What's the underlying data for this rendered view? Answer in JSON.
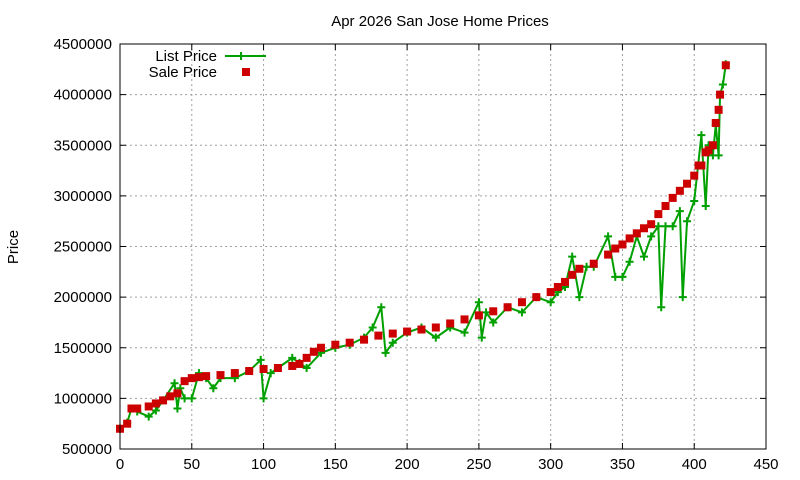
{
  "chart_data": {
    "type": "line",
    "title": "Apr 2026 San Jose Home Prices",
    "xlabel": "",
    "ylabel": "Price",
    "xlim": [
      0,
      450
    ],
    "ylim": [
      500000,
      4500000
    ],
    "xticks": [
      0,
      50,
      100,
      150,
      200,
      250,
      300,
      350,
      400,
      450
    ],
    "yticks": [
      500000,
      1000000,
      1500000,
      2000000,
      2500000,
      3000000,
      3500000,
      4000000,
      4500000
    ],
    "grid": true,
    "legend_position": "top-left",
    "colors": {
      "list": "#00a000",
      "sale": "#cc0000"
    },
    "series": [
      {
        "name": "List Price",
        "style": "linespoints-plus",
        "x": [
          0,
          5,
          8,
          12,
          20,
          25,
          30,
          38,
          40,
          42,
          45,
          50,
          55,
          60,
          65,
          70,
          80,
          90,
          98,
          100,
          105,
          110,
          120,
          125,
          130,
          140,
          150,
          160,
          170,
          176,
          182,
          185,
          190,
          200,
          210,
          220,
          230,
          240,
          250,
          252,
          255,
          260,
          270,
          280,
          290,
          300,
          305,
          310,
          315,
          320,
          325,
          330,
          340,
          345,
          350,
          355,
          360,
          365,
          370,
          375,
          377,
          380,
          385,
          390,
          392,
          395,
          400,
          405,
          408,
          410,
          413,
          415,
          417,
          418,
          420,
          422
        ],
        "y": [
          700000,
          760000,
          900000,
          870000,
          820000,
          880000,
          980000,
          1150000,
          900000,
          1100000,
          1000000,
          1000000,
          1250000,
          1200000,
          1100000,
          1200000,
          1200000,
          1270000,
          1380000,
          1000000,
          1250000,
          1300000,
          1400000,
          1350000,
          1300000,
          1450000,
          1500000,
          1530000,
          1600000,
          1700000,
          1900000,
          1450000,
          1550000,
          1650000,
          1700000,
          1600000,
          1700000,
          1650000,
          1950000,
          1600000,
          1850000,
          1750000,
          1900000,
          1850000,
          2000000,
          1950000,
          2050000,
          2100000,
          2400000,
          2000000,
          2300000,
          2300000,
          2600000,
          2200000,
          2200000,
          2350000,
          2600000,
          2400000,
          2600000,
          2700000,
          1900000,
          2700000,
          2700000,
          2850000,
          2000000,
          2750000,
          2950000,
          3600000,
          2900000,
          3500000,
          3400000,
          3700000,
          3400000,
          4000000,
          4100000,
          4300000
        ]
      },
      {
        "name": "Sale Price",
        "style": "points-square",
        "x": [
          0,
          5,
          8,
          12,
          20,
          25,
          30,
          35,
          40,
          45,
          50,
          55,
          60,
          70,
          80,
          90,
          100,
          110,
          120,
          125,
          130,
          135,
          140,
          150,
          160,
          170,
          180,
          190,
          200,
          210,
          220,
          230,
          240,
          250,
          260,
          270,
          280,
          290,
          300,
          305,
          310,
          315,
          320,
          330,
          340,
          345,
          350,
          355,
          360,
          365,
          370,
          375,
          380,
          385,
          390,
          395,
          400,
          403,
          405,
          408,
          410,
          413,
          415,
          417,
          418,
          422
        ],
        "y": [
          700000,
          750000,
          900000,
          900000,
          920000,
          950000,
          980000,
          1020000,
          1050000,
          1170000,
          1200000,
          1210000,
          1220000,
          1230000,
          1250000,
          1270000,
          1290000,
          1300000,
          1320000,
          1340000,
          1400000,
          1460000,
          1500000,
          1530000,
          1550000,
          1580000,
          1620000,
          1640000,
          1660000,
          1680000,
          1700000,
          1740000,
          1780000,
          1820000,
          1860000,
          1900000,
          1950000,
          2000000,
          2050000,
          2100000,
          2150000,
          2220000,
          2280000,
          2330000,
          2420000,
          2480000,
          2520000,
          2580000,
          2630000,
          2680000,
          2720000,
          2820000,
          2900000,
          2980000,
          3050000,
          3120000,
          3200000,
          3300000,
          3300000,
          3430000,
          3450000,
          3500000,
          3720000,
          3850000,
          4000000,
          4290000
        ]
      }
    ]
  }
}
